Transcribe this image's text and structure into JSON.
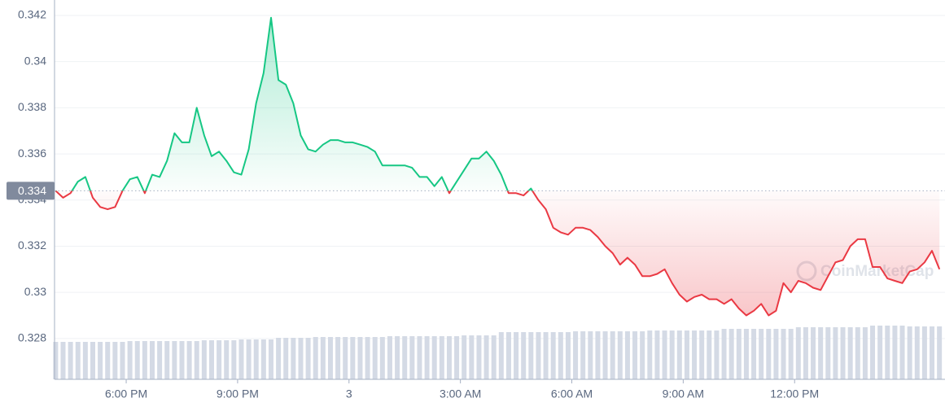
{
  "chart_data": {
    "type": "line",
    "x": [
      16.1,
      16.3,
      16.5,
      16.7,
      16.9,
      17.1,
      17.3,
      17.5,
      17.7,
      17.9,
      18.1,
      18.3,
      18.5,
      18.7,
      18.9,
      19.1,
      19.3,
      19.5,
      19.7,
      19.9,
      20.1,
      20.3,
      20.5,
      20.7,
      20.9,
      21.1,
      21.3,
      21.5,
      21.7,
      21.9,
      22.1,
      22.3,
      22.5,
      22.7,
      22.9,
      23.1,
      23.3,
      23.5,
      23.7,
      23.9,
      24.1,
      24.3,
      24.5,
      24.7,
      24.9,
      25.1,
      25.3,
      25.5,
      25.7,
      25.9,
      26.1,
      26.3,
      26.5,
      26.7,
      26.9,
      27.1,
      27.3,
      27.5,
      27.7,
      27.9,
      28.1,
      28.3,
      28.5,
      28.7,
      28.9,
      29.1,
      29.3,
      29.5,
      29.7,
      29.9,
      30.1,
      30.3,
      30.5,
      30.7,
      30.9,
      31.1,
      31.3,
      31.5,
      31.7,
      31.9,
      32.1,
      32.3,
      32.5,
      32.7,
      32.9,
      33.1,
      33.3,
      33.5,
      33.7,
      33.9,
      34.1,
      34.3,
      34.5,
      34.7,
      34.9,
      35.1,
      35.3,
      35.5,
      35.7,
      35.9,
      36.1,
      36.3,
      36.5,
      36.7,
      36.9,
      37.1,
      37.3,
      37.5,
      37.7,
      37.9,
      38.1,
      38.3,
      38.5,
      38.7,
      38.9,
      39.1,
      39.3,
      39.5,
      39.7,
      39.9
    ],
    "values": [
      0.3344,
      0.3341,
      0.3343,
      0.3348,
      0.335,
      0.3341,
      0.3337,
      0.3336,
      0.3337,
      0.3344,
      0.3349,
      0.335,
      0.3343,
      0.3351,
      0.335,
      0.3357,
      0.3369,
      0.3365,
      0.3365,
      0.338,
      0.3368,
      0.3359,
      0.3361,
      0.3357,
      0.3352,
      0.3351,
      0.3362,
      0.3382,
      0.3395,
      0.3419,
      0.3392,
      0.339,
      0.3382,
      0.3368,
      0.3362,
      0.3361,
      0.3364,
      0.3366,
      0.3366,
      0.3365,
      0.3365,
      0.3364,
      0.3363,
      0.3361,
      0.3355,
      0.3355,
      0.3355,
      0.3355,
      0.3354,
      0.335,
      0.335,
      0.3346,
      0.335,
      0.3343,
      0.3348,
      0.3353,
      0.3358,
      0.3358,
      0.3361,
      0.3357,
      0.3351,
      0.3343,
      0.3343,
      0.3342,
      0.3345,
      0.334,
      0.3336,
      0.3328,
      0.3326,
      0.3325,
      0.3328,
      0.3328,
      0.3327,
      0.3324,
      0.332,
      0.3317,
      0.3312,
      0.3315,
      0.3312,
      0.3307,
      0.3307,
      0.3308,
      0.331,
      0.3304,
      0.3299,
      0.3296,
      0.3298,
      0.3299,
      0.3297,
      0.3297,
      0.3295,
      0.3297,
      0.3293,
      0.329,
      0.3292,
      0.3295,
      0.329,
      0.3292,
      0.3304,
      0.33,
      0.3305,
      0.3304,
      0.3302,
      0.3301,
      0.3307,
      0.3313,
      0.3314,
      0.332,
      0.3323,
      0.3323,
      0.3311,
      0.3311,
      0.3306,
      0.3305,
      0.3304,
      0.3309,
      0.331,
      0.3313,
      0.3318,
      0.331
    ],
    "colors": {
      "up": "#16c784",
      "down": "#ea3943"
    },
    "baseline": {
      "value": 0.3344,
      "label": "0.334"
    },
    "volume": {
      "color": "#d4dae5",
      "lim": [
        0,
        100
      ],
      "values": [
        46,
        46,
        46,
        46,
        46,
        46,
        46,
        46,
        46,
        46,
        47,
        47,
        47,
        47,
        47,
        47,
        47,
        47,
        47,
        47,
        48,
        48,
        48,
        48,
        48,
        49,
        49,
        49,
        49,
        49,
        51,
        51,
        51,
        51,
        51,
        52,
        52,
        52,
        52,
        52,
        52,
        52,
        52,
        52,
        52,
        53,
        53,
        53,
        53,
        53,
        53,
        53,
        53,
        53,
        53,
        54,
        54,
        54,
        54,
        54,
        58,
        58,
        58,
        58,
        58,
        58,
        58,
        58,
        58,
        58,
        59,
        59,
        59,
        59,
        59,
        59,
        59,
        59,
        59,
        59,
        60,
        60,
        60,
        60,
        60,
        60,
        60,
        60,
        60,
        60,
        62,
        62,
        62,
        62,
        62,
        62,
        62,
        62,
        62,
        62,
        64,
        64,
        64,
        64,
        64,
        64,
        64,
        64,
        64,
        64,
        66,
        66,
        66,
        66,
        66,
        65,
        65,
        65,
        65,
        65
      ]
    },
    "xlim": [
      16.07,
      40.05
    ],
    "xticks": [
      {
        "value": 18,
        "label": "6:00 PM"
      },
      {
        "value": 21,
        "label": "9:00 PM"
      },
      {
        "value": 24,
        "label": "3"
      },
      {
        "value": 27,
        "label": "3:00 AM"
      },
      {
        "value": 30,
        "label": "6:00 AM"
      },
      {
        "value": 33,
        "label": "9:00 AM"
      },
      {
        "value": 36,
        "label": "12:00 PM"
      }
    ],
    "ylim": [
      0.32623,
      0.34267
    ],
    "yticks": [
      0.328,
      0.33,
      0.332,
      0.334,
      0.336,
      0.338,
      0.34,
      0.342
    ],
    "grid": true,
    "watermark": "CoinMarketCap"
  }
}
